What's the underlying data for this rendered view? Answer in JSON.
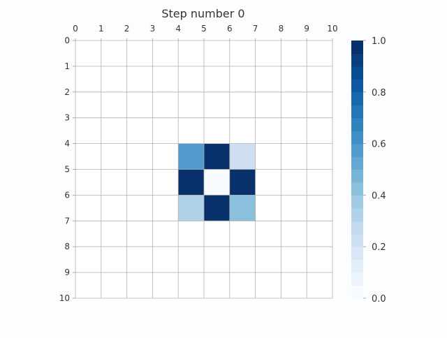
{
  "chart_data": {
    "type": "heatmap",
    "title": "Step number 0",
    "xlabel": "",
    "ylabel": "",
    "x_ticks": [
      "0",
      "1",
      "2",
      "3",
      "4",
      "5",
      "6",
      "7",
      "8",
      "9",
      "10"
    ],
    "y_ticks": [
      "0",
      "1",
      "2",
      "3",
      "4",
      "5",
      "6",
      "7",
      "8",
      "9",
      "10"
    ],
    "x_axis_position": "top",
    "y_axis_inverted": true,
    "xlim": [
      0,
      10
    ],
    "ylim": [
      0,
      10
    ],
    "grid": true,
    "cells": [
      {
        "col": 4,
        "row": 4,
        "value": 0.55
      },
      {
        "col": 5,
        "row": 4,
        "value": 1.0
      },
      {
        "col": 6,
        "row": 4,
        "value": 0.2
      },
      {
        "col": 4,
        "row": 5,
        "value": 1.0
      },
      {
        "col": 5,
        "row": 5,
        "value": 0.0
      },
      {
        "col": 6,
        "row": 5,
        "value": 1.0
      },
      {
        "col": 4,
        "row": 6,
        "value": 0.3
      },
      {
        "col": 5,
        "row": 6,
        "value": 1.0
      },
      {
        "col": 6,
        "row": 6,
        "value": 0.4
      }
    ],
    "colorbar": {
      "min": 0.0,
      "max": 1.0,
      "levels": 20,
      "ticks": [
        "0.0",
        "0.2",
        "0.4",
        "0.6",
        "0.8",
        "1.0"
      ],
      "colormap": "Blues",
      "placement": "right"
    }
  }
}
